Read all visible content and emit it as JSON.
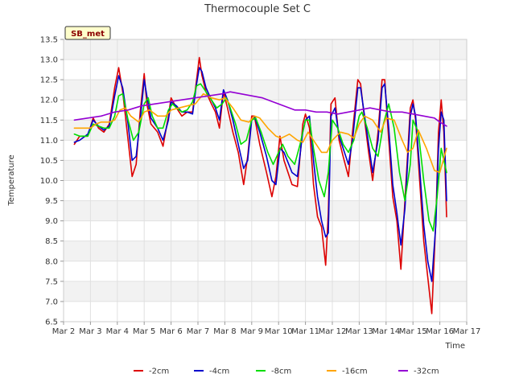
{
  "chart_data": {
    "type": "line",
    "title": "Thermocouple Set C",
    "xlabel": "Time",
    "ylabel": "Temperature",
    "xlim": [
      2,
      17
    ],
    "ylim": [
      6.5,
      13.5
    ],
    "x_ticks": [
      2,
      3,
      4,
      5,
      6,
      7,
      8,
      9,
      10,
      11,
      12,
      13,
      14,
      15,
      16,
      17
    ],
    "x_tick_labels": [
      "Mar 2",
      "Mar 3",
      "Mar 4",
      "Mar 5",
      "Mar 6",
      "Mar 7",
      "Mar 8",
      "Mar 9",
      "Mar 10",
      "Mar 11",
      "Mar 12",
      "Mar 13",
      "Mar 14",
      "Mar 15",
      "Mar 16",
      "Mar 17"
    ],
    "y_ticks": [
      6.5,
      7.0,
      7.5,
      8.0,
      8.5,
      9.0,
      9.5,
      10.0,
      10.5,
      11.0,
      11.5,
      12.0,
      12.5,
      13.0,
      13.5
    ],
    "y_tick_labels": [
      "6.5",
      "7.0",
      "7.5",
      "8.0",
      "8.5",
      "9.0",
      "9.5",
      "10.0",
      "10.5",
      "11.0",
      "11.5",
      "12.0",
      "12.5",
      "13.0",
      "13.5"
    ],
    "annotation": "SB_met",
    "legend": "bottom-center",
    "series": [
      {
        "name": "-2cm",
        "color": "#dd0000",
        "x": [
          2.4,
          2.6,
          2.9,
          3.1,
          3.3,
          3.5,
          3.7,
          3.9,
          4.05,
          4.2,
          4.4,
          4.55,
          4.7,
          4.85,
          5.0,
          5.1,
          5.25,
          5.5,
          5.7,
          5.9,
          6.0,
          6.2,
          6.4,
          6.6,
          6.8,
          6.95,
          7.05,
          7.15,
          7.3,
          7.5,
          7.65,
          7.8,
          7.95,
          8.1,
          8.3,
          8.5,
          8.7,
          8.85,
          9.0,
          9.1,
          9.3,
          9.55,
          9.75,
          9.9,
          10.05,
          10.2,
          10.5,
          10.7,
          10.9,
          11.0,
          11.15,
          11.3,
          11.45,
          11.6,
          11.75,
          11.85,
          11.95,
          12.1,
          12.25,
          12.4,
          12.6,
          12.75,
          12.95,
          13.05,
          13.2,
          13.35,
          13.5,
          13.7,
          13.85,
          13.95,
          14.1,
          14.25,
          14.4,
          14.55,
          14.7,
          14.9,
          15.0,
          15.1,
          15.25,
          15.4,
          15.55,
          15.7,
          15.85,
          15.95,
          16.05,
          16.15,
          16.25
        ],
        "y": [
          10.9,
          11.1,
          11.1,
          11.55,
          11.3,
          11.2,
          11.4,
          12.3,
          12.8,
          12.2,
          11.0,
          10.1,
          10.4,
          11.7,
          12.65,
          11.9,
          11.4,
          11.2,
          10.85,
          11.6,
          12.05,
          11.8,
          11.6,
          11.7,
          11.7,
          12.5,
          13.05,
          12.6,
          12.2,
          11.9,
          11.7,
          11.3,
          12.2,
          11.8,
          11.2,
          10.7,
          9.9,
          10.6,
          11.6,
          11.6,
          10.9,
          10.2,
          9.6,
          10.1,
          11.1,
          10.5,
          9.9,
          9.85,
          11.4,
          11.65,
          11.3,
          9.9,
          9.1,
          8.85,
          7.9,
          9.2,
          11.9,
          12.05,
          11.0,
          10.6,
          10.1,
          11.2,
          12.5,
          12.4,
          11.5,
          10.7,
          10.0,
          11.2,
          12.5,
          12.5,
          11.0,
          9.6,
          9.0,
          7.8,
          9.5,
          11.8,
          12.0,
          11.5,
          10.0,
          8.5,
          7.6,
          6.7,
          9.0,
          11.2,
          12.0,
          11.2,
          9.1
        ]
      },
      {
        "name": "-4cm",
        "color": "#0000cc",
        "x": [
          2.4,
          2.6,
          2.9,
          3.1,
          3.3,
          3.5,
          3.7,
          3.9,
          4.05,
          4.2,
          4.4,
          4.55,
          4.7,
          4.85,
          5.0,
          5.1,
          5.25,
          5.5,
          5.7,
          5.9,
          6.0,
          6.2,
          6.4,
          6.6,
          6.8,
          6.95,
          7.05,
          7.15,
          7.3,
          7.5,
          7.65,
          7.8,
          7.95,
          8.1,
          8.3,
          8.5,
          8.7,
          8.85,
          9.0,
          9.1,
          9.3,
          9.55,
          9.75,
          9.9,
          10.05,
          10.2,
          10.5,
          10.7,
          10.9,
          11.0,
          11.15,
          11.3,
          11.45,
          11.6,
          11.75,
          11.85,
          11.95,
          12.1,
          12.25,
          12.4,
          12.6,
          12.75,
          12.95,
          13.05,
          13.2,
          13.35,
          13.5,
          13.7,
          13.85,
          13.95,
          14.1,
          14.25,
          14.4,
          14.55,
          14.7,
          14.9,
          15.0,
          15.1,
          15.25,
          15.4,
          15.55,
          15.7,
          15.85,
          15.95,
          16.05,
          16.15,
          16.25
        ],
        "y": [
          10.95,
          11.0,
          11.15,
          11.5,
          11.35,
          11.25,
          11.35,
          12.1,
          12.6,
          12.3,
          11.4,
          10.5,
          10.6,
          11.5,
          12.5,
          12.1,
          11.55,
          11.3,
          11.0,
          11.5,
          11.95,
          11.85,
          11.7,
          11.7,
          11.65,
          12.4,
          12.8,
          12.7,
          12.3,
          12.0,
          11.8,
          11.5,
          12.25,
          12.0,
          11.5,
          10.9,
          10.3,
          10.5,
          11.5,
          11.6,
          11.2,
          10.6,
          10.0,
          9.9,
          10.8,
          10.7,
          10.2,
          10.1,
          11.2,
          11.5,
          11.6,
          10.5,
          9.6,
          9.0,
          8.6,
          8.7,
          11.6,
          11.8,
          11.1,
          10.8,
          10.4,
          11.0,
          12.3,
          12.3,
          11.6,
          10.9,
          10.2,
          11.0,
          12.3,
          12.4,
          11.3,
          9.9,
          9.2,
          8.4,
          9.3,
          11.6,
          11.9,
          11.6,
          10.3,
          8.9,
          8.0,
          7.5,
          8.9,
          10.8,
          11.7,
          11.5,
          9.5
        ]
      },
      {
        "name": "-8cm",
        "color": "#00dd00",
        "x": [
          2.4,
          2.6,
          2.9,
          3.1,
          3.3,
          3.5,
          3.7,
          3.9,
          4.05,
          4.2,
          4.4,
          4.6,
          4.8,
          5.0,
          5.15,
          5.3,
          5.5,
          5.7,
          5.9,
          6.05,
          6.2,
          6.4,
          6.6,
          6.8,
          6.95,
          7.1,
          7.3,
          7.5,
          7.7,
          7.9,
          8.05,
          8.2,
          8.4,
          8.6,
          8.8,
          9.0,
          9.15,
          9.35,
          9.6,
          9.8,
          10.0,
          10.15,
          10.35,
          10.6,
          10.8,
          11.0,
          11.15,
          11.3,
          11.5,
          11.7,
          11.85,
          12.0,
          12.2,
          12.4,
          12.6,
          12.8,
          13.0,
          13.1,
          13.3,
          13.5,
          13.7,
          13.9,
          14.1,
          14.3,
          14.5,
          14.7,
          14.9,
          15.0,
          15.2,
          15.4,
          15.6,
          15.75,
          15.9,
          16.05,
          16.15,
          16.25
        ],
        "y": [
          11.15,
          11.1,
          11.1,
          11.4,
          11.35,
          11.3,
          11.3,
          11.6,
          12.1,
          12.15,
          11.5,
          11.0,
          11.2,
          11.9,
          12.05,
          11.6,
          11.3,
          11.3,
          11.75,
          11.9,
          11.8,
          11.7,
          11.75,
          11.95,
          12.35,
          12.4,
          12.2,
          12.0,
          11.8,
          11.9,
          12.05,
          11.8,
          11.4,
          10.9,
          11.0,
          11.5,
          11.55,
          11.2,
          10.7,
          10.4,
          10.7,
          10.9,
          10.6,
          10.4,
          10.9,
          11.5,
          11.5,
          10.8,
          10.0,
          9.6,
          10.2,
          11.5,
          11.3,
          10.9,
          10.7,
          11.0,
          11.6,
          11.7,
          11.3,
          10.8,
          10.6,
          11.4,
          11.9,
          11.3,
          10.2,
          9.5,
          10.4,
          11.5,
          11.2,
          10.0,
          9.0,
          8.75,
          9.6,
          10.8,
          10.5,
          10.2
        ]
      },
      {
        "name": "-16cm",
        "color": "#ffa500",
        "x": [
          2.4,
          2.7,
          3.0,
          3.2,
          3.4,
          3.7,
          3.9,
          4.1,
          4.3,
          4.5,
          4.8,
          5.0,
          5.2,
          5.5,
          5.8,
          6.0,
          6.3,
          6.6,
          6.9,
          7.2,
          7.5,
          7.8,
          8.0,
          8.3,
          8.6,
          8.9,
          9.1,
          9.3,
          9.6,
          9.9,
          10.1,
          10.4,
          10.7,
          10.9,
          11.1,
          11.3,
          11.6,
          11.8,
          12.0,
          12.3,
          12.6,
          12.8,
          13.0,
          13.2,
          13.5,
          13.8,
          14.0,
          14.3,
          14.6,
          14.8,
          15.0,
          15.2,
          15.5,
          15.8,
          16.0,
          16.25
        ],
        "y": [
          11.3,
          11.3,
          11.3,
          11.4,
          11.45,
          11.45,
          11.5,
          11.75,
          11.8,
          11.6,
          11.45,
          11.7,
          11.75,
          11.6,
          11.6,
          11.75,
          11.8,
          11.85,
          11.9,
          12.15,
          12.05,
          12.0,
          12.05,
          11.8,
          11.5,
          11.45,
          11.6,
          11.55,
          11.3,
          11.1,
          11.05,
          11.15,
          11.0,
          10.95,
          11.2,
          11.0,
          10.7,
          10.7,
          11.0,
          11.2,
          11.15,
          11.05,
          11.4,
          11.6,
          11.5,
          11.2,
          11.55,
          11.5,
          11.0,
          10.7,
          10.8,
          11.25,
          10.8,
          10.25,
          10.2,
          10.8
        ]
      },
      {
        "name": "-32cm",
        "color": "#9400d3",
        "x": [
          2.4,
          2.9,
          3.4,
          3.9,
          4.4,
          4.9,
          5.4,
          5.9,
          6.4,
          6.9,
          7.4,
          7.9,
          8.2,
          8.6,
          9.0,
          9.4,
          9.8,
          10.2,
          10.6,
          11.0,
          11.4,
          11.8,
          12.2,
          12.6,
          13.0,
          13.4,
          13.8,
          14.2,
          14.6,
          15.0,
          15.4,
          15.8,
          16.0,
          16.25
        ],
        "y": [
          11.5,
          11.55,
          11.6,
          11.7,
          11.75,
          11.85,
          11.9,
          11.95,
          12.0,
          12.05,
          12.1,
          12.15,
          12.2,
          12.15,
          12.1,
          12.05,
          11.95,
          11.85,
          11.75,
          11.75,
          11.7,
          11.7,
          11.65,
          11.7,
          11.75,
          11.8,
          11.75,
          11.7,
          11.7,
          11.65,
          11.6,
          11.55,
          11.45,
          11.35
        ]
      }
    ]
  }
}
